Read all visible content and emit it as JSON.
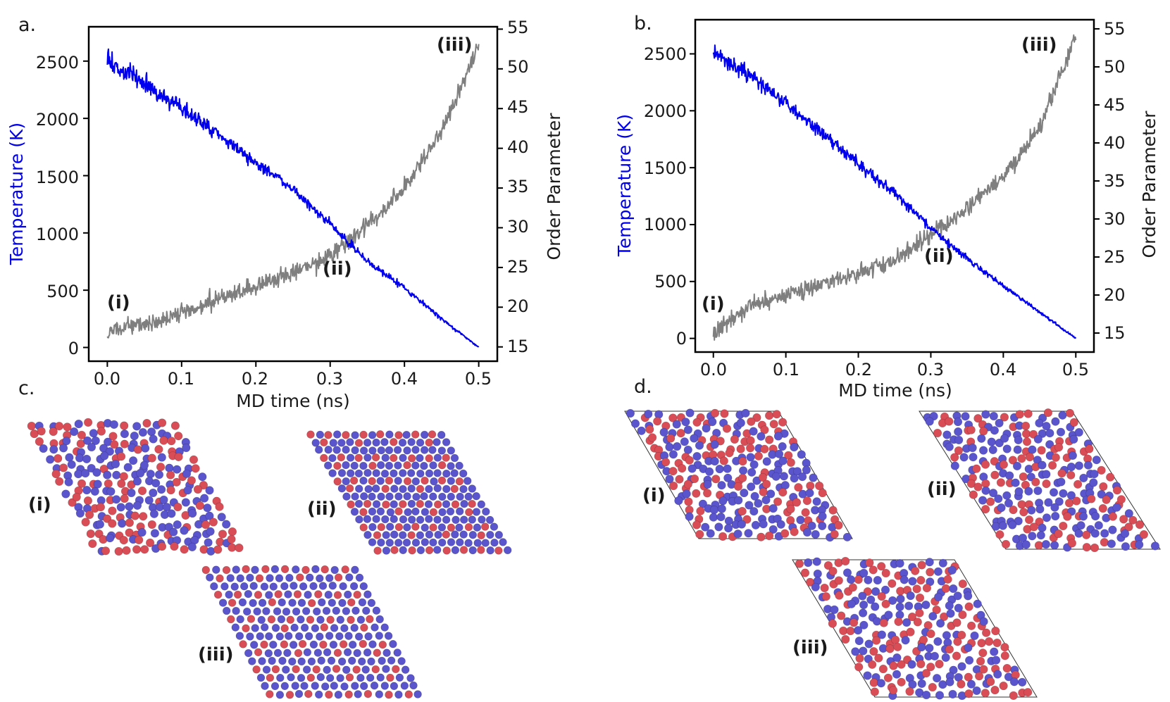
{
  "colors": {
    "temperature": "#0000ee",
    "order_parameter": "#7f7f7f",
    "atom_a": "#d94d57",
    "atom_b": "#5a55cc",
    "cell_outline": "#333333"
  },
  "chart_data": [
    {
      "id": "a",
      "panel_label": "a.",
      "type": "line",
      "xlabel": "MD time (ns)",
      "ylabel_left": "Temperature (K)",
      "ylabel_right": "Order Parameter",
      "xlim": [
        -0.025,
        0.525
      ],
      "ylim_left": [
        -120,
        2800
      ],
      "ylim_right": [
        13.2,
        55.3
      ],
      "xticks": [
        "0.0",
        "0.1",
        "0.2",
        "0.3",
        "0.4",
        "0.5"
      ],
      "yticks_left": [
        "0",
        "500",
        "1000",
        "1500",
        "2000",
        "2500"
      ],
      "yticks_right": [
        "15",
        "20",
        "25",
        "30",
        "35",
        "40",
        "45",
        "50",
        "55"
      ],
      "series": [
        {
          "name": "Temperature",
          "axis": "left",
          "x": [
            0.0,
            0.05,
            0.1,
            0.15,
            0.2,
            0.25,
            0.3,
            0.35,
            0.4,
            0.45,
            0.5
          ],
          "values": [
            2510,
            2310,
            2080,
            1860,
            1610,
            1380,
            1080,
            750,
            520,
            250,
            0
          ]
        },
        {
          "name": "Order Parameter",
          "axis": "right",
          "x": [
            0.0,
            0.05,
            0.1,
            0.15,
            0.2,
            0.25,
            0.3,
            0.35,
            0.4,
            0.45,
            0.5
          ],
          "values": [
            17.0,
            17.8,
            19.4,
            21.0,
            22.5,
            24.4,
            26.4,
            30.3,
            35.0,
            42.0,
            53.0
          ]
        }
      ],
      "annotations": [
        "(i)",
        "(ii)",
        "(iii)"
      ]
    },
    {
      "id": "b",
      "panel_label": "b.",
      "type": "line",
      "xlabel": "MD time (ns)",
      "ylabel_left": "Temperature (K)",
      "ylabel_right": "Order Parameter",
      "xlim": [
        -0.025,
        0.525
      ],
      "ylim_left": [
        -120,
        2800
      ],
      "ylim_right": [
        12.5,
        56.2
      ],
      "xticks": [
        "0.0",
        "0.1",
        "0.2",
        "0.3",
        "0.4",
        "0.5"
      ],
      "yticks_left": [
        "0",
        "500",
        "1000",
        "1500",
        "2000",
        "2500"
      ],
      "yticks_right": [
        "15",
        "20",
        "25",
        "30",
        "35",
        "40",
        "45",
        "50",
        "55"
      ],
      "series": [
        {
          "name": "Temperature",
          "axis": "left",
          "x": [
            0.0,
            0.05,
            0.1,
            0.15,
            0.2,
            0.25,
            0.3,
            0.35,
            0.4,
            0.45,
            0.5
          ],
          "values": [
            2510,
            2310,
            2070,
            1800,
            1530,
            1280,
            970,
            700,
            460,
            230,
            0
          ]
        },
        {
          "name": "Order Parameter",
          "axis": "right",
          "x": [
            0.0,
            0.05,
            0.1,
            0.15,
            0.2,
            0.25,
            0.3,
            0.35,
            0.4,
            0.45,
            0.5
          ],
          "values": [
            15.0,
            18.5,
            20.0,
            21.5,
            22.8,
            24.5,
            27.8,
            31.5,
            35.5,
            42.0,
            54.0
          ]
        }
      ],
      "annotations": [
        "(i)",
        "(ii)",
        "(iii)"
      ]
    }
  ],
  "snapshots": [
    {
      "id": "c",
      "panel_label": "c.",
      "cell_outline": false,
      "items": [
        {
          "label": "(i)",
          "order": "disordered"
        },
        {
          "label": "(ii)",
          "order": "ordered"
        },
        {
          "label": "(iii)",
          "order": "ordered"
        }
      ]
    },
    {
      "id": "d",
      "panel_label": "d.",
      "cell_outline": true,
      "items": [
        {
          "label": "(i)",
          "order": "disordered"
        },
        {
          "label": "(ii)",
          "order": "disordered"
        },
        {
          "label": "(iii)",
          "order": "disordered"
        }
      ]
    }
  ]
}
